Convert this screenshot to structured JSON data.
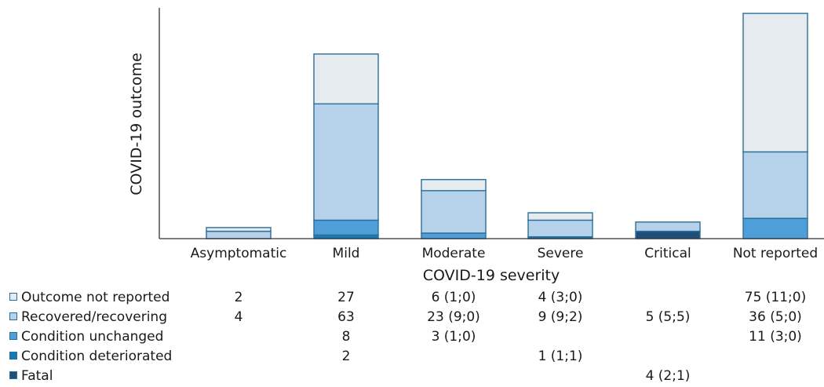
{
  "chart_data": {
    "type": "bar",
    "stacked": true,
    "xlabel": "COVID-19 severity",
    "ylabel": "COVID-19 outcome",
    "categories": [
      "Asymptomatic",
      "Mild",
      "Moderate",
      "Severe",
      "Critical",
      "Not reported"
    ],
    "series": [
      {
        "name": "Fatal",
        "color": "#1f4e79",
        "values": [
          0,
          0,
          0,
          0,
          4,
          0
        ],
        "labels": [
          "",
          "",
          "",
          "",
          "4 (2;1)",
          ""
        ]
      },
      {
        "name": "Condition deteriorated",
        "color": "#1879b8",
        "values": [
          0,
          2,
          0,
          1,
          0,
          0
        ],
        "labels": [
          "",
          "2",
          "",
          "1 (1;1)",
          "",
          ""
        ]
      },
      {
        "name": "Condition unchanged",
        "color": "#4e9fd9",
        "values": [
          0,
          8,
          3,
          0,
          0,
          11
        ],
        "labels": [
          "",
          "8",
          "3 (1;0)",
          "",
          "",
          "11 (3;0)"
        ]
      },
      {
        "name": "Recovered/recovering",
        "color": "#b6d1ea",
        "values": [
          4,
          63,
          23,
          9,
          5,
          36
        ],
        "labels": [
          "4",
          "63",
          "23 (9;0)",
          "9 (9;2)",
          "5 (5;5)",
          "36 (5;0)"
        ]
      },
      {
        "name": "Outcome not reported",
        "color": "#e6ebef",
        "values": [
          2,
          27,
          6,
          4,
          0,
          75
        ],
        "labels": [
          "2",
          "27",
          "6 (1;0)",
          "4 (3;0)",
          "",
          "75 (11;0)"
        ]
      }
    ],
    "ylim": [
      0,
      125
    ],
    "grid": false,
    "legend_position": "bottom-left"
  },
  "table_rows": [
    "Outcome not reported",
    "Recovered/recovering",
    "Condition unchanged",
    "Condition deteriorated",
    "Fatal"
  ]
}
